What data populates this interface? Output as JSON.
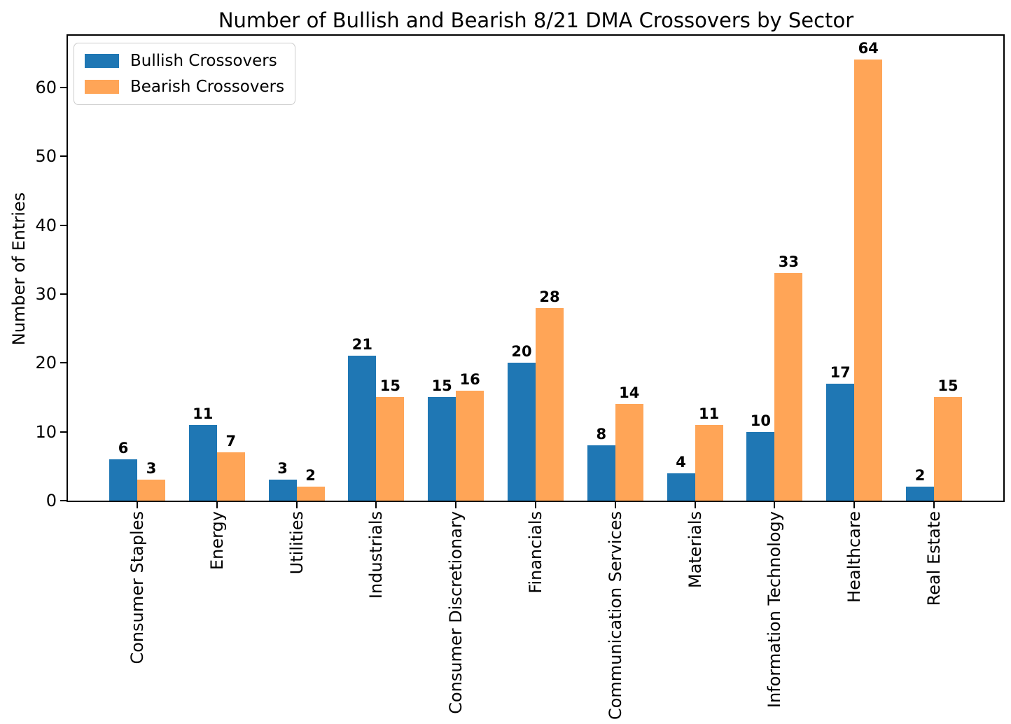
{
  "title": "Number of Bullish and Bearish 8/21 DMA Crossovers by Sector",
  "y_axis_title": "Number of Entries",
  "chart_data": {
    "type": "bar",
    "title": "Number of Bullish and Bearish 8/21 DMA Crossovers by Sector",
    "xlabel": "",
    "ylabel": "Number of Entries",
    "categories": [
      "Consumer Staples",
      "Energy",
      "Utilities",
      "Industrials",
      "Consumer Discretionary",
      "Financials",
      "Communication Services",
      "Materials",
      "Information Technology",
      "Healthcare",
      "Real Estate"
    ],
    "series": [
      {
        "name": "Bullish Crossovers",
        "color": "#1f77b4",
        "values": [
          6,
          11,
          3,
          21,
          15,
          20,
          8,
          4,
          10,
          17,
          2
        ]
      },
      {
        "name": "Bearish Crossovers",
        "color": "#ffa557",
        "values": [
          3,
          7,
          2,
          15,
          16,
          28,
          14,
          11,
          33,
          64,
          15
        ]
      }
    ],
    "ylim": [
      0,
      67.5
    ],
    "yticks": [
      0,
      10,
      20,
      30,
      40,
      50,
      60
    ],
    "grid": false,
    "legend_position": "upper left",
    "bar_value_labels": true,
    "colors": {
      "bullish": "#1f77b4",
      "bearish": "#ffa557",
      "text": "#000000",
      "spine": "#000000",
      "legend_border": "#cccccc"
    }
  }
}
